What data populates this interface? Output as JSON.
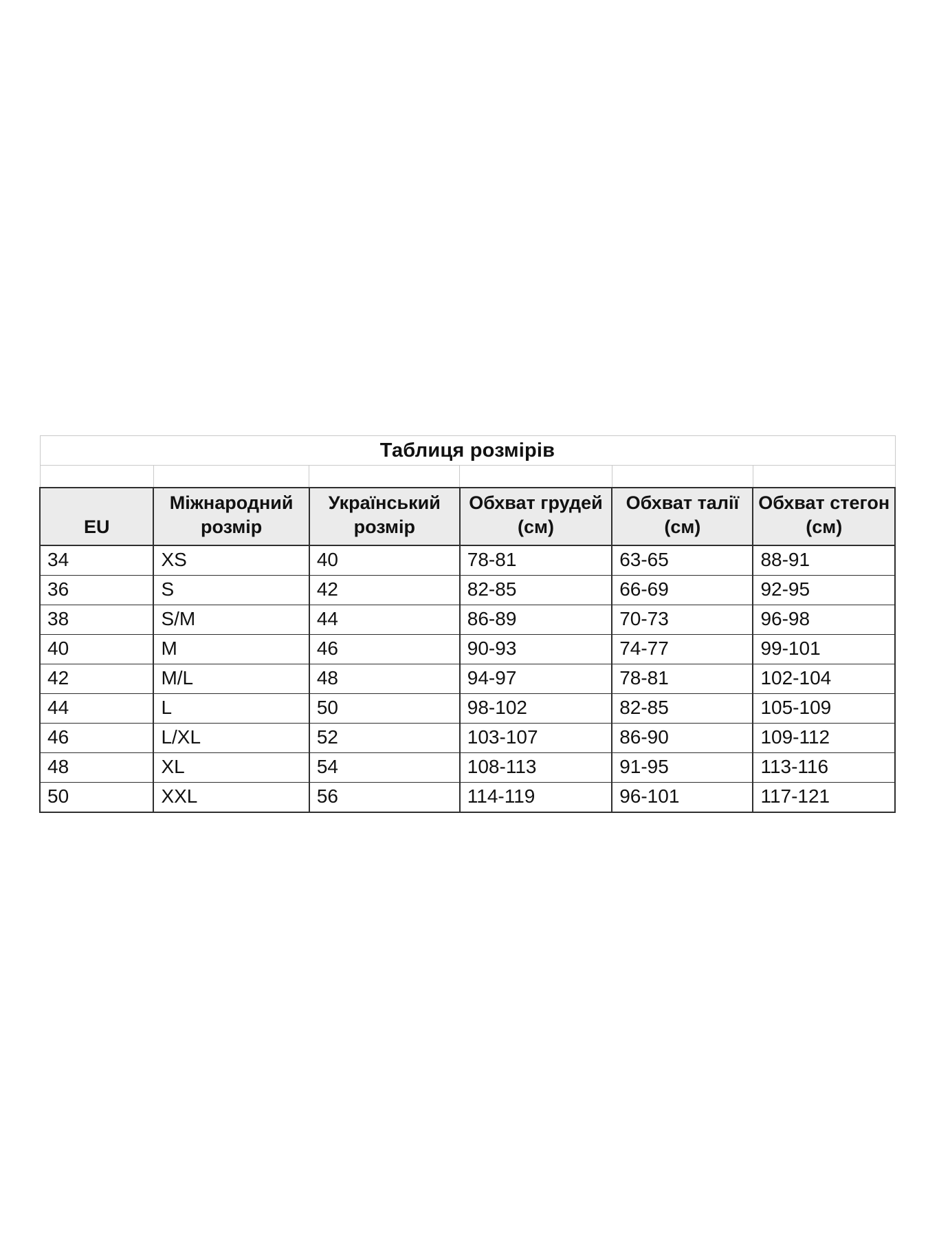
{
  "page": {
    "background_color": "#ffffff"
  },
  "table": {
    "title": "Таблиця розмірів",
    "columns": [
      "EU",
      "Міжнародний розмір",
      "Український розмір",
      "Обхват грудей (см)",
      "Обхват талії (см)",
      "Обхват стегон (см)"
    ],
    "rows": [
      [
        "34",
        "XS",
        "40",
        "78-81",
        "63-65",
        "88-91"
      ],
      [
        "36",
        "S",
        "42",
        "82-85",
        "66-69",
        "92-95"
      ],
      [
        "38",
        "S/M",
        "44",
        "86-89",
        "70-73",
        "96-98"
      ],
      [
        "40",
        "M",
        "46",
        "90-93",
        "74-77",
        "99-101"
      ],
      [
        "42",
        "M/L",
        "48",
        "94-97",
        "78-81",
        "102-104"
      ],
      [
        "44",
        "L",
        "50",
        "98-102",
        "82-85",
        "105-109"
      ],
      [
        "46",
        "L/XL",
        "52",
        "103-107",
        "86-90",
        "109-112"
      ],
      [
        "48",
        "XL",
        "54",
        "108-113",
        "91-95",
        "113-116"
      ],
      [
        "50",
        "XXL",
        "56",
        "114-119",
        "96-101",
        "117-121"
      ]
    ],
    "colors": {
      "header_background": "#ebebeb",
      "dark_border": "#2e2e2e",
      "light_border": "#c9c9c9",
      "text": "#111111"
    }
  }
}
